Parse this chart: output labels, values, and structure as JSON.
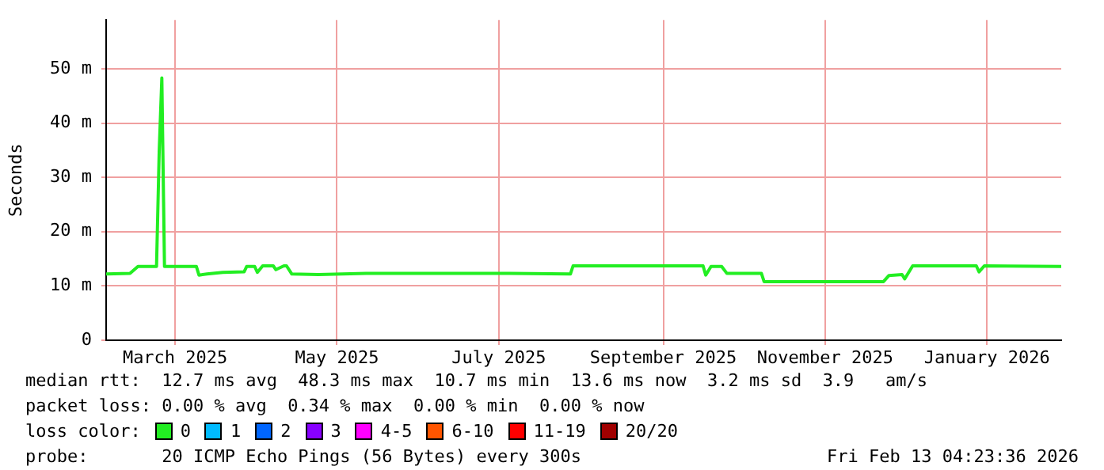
{
  "chart_data": {
    "type": "line",
    "ylabel": "Seconds",
    "x": [
      "2025-02-18",
      "2025-02-27",
      "2025-03-02",
      "2025-03-09",
      "2025-03-10",
      "2025-03-11",
      "2025-03-12",
      "2025-03-24",
      "2025-03-25",
      "2025-03-28",
      "2025-04-03",
      "2025-04-11",
      "2025-04-12",
      "2025-04-15",
      "2025-04-16",
      "2025-04-18",
      "2025-04-22",
      "2025-04-23",
      "2025-04-26",
      "2025-04-27",
      "2025-04-29",
      "2025-05-09",
      "2025-05-27",
      "2025-06-26",
      "2025-07-20",
      "2025-08-12",
      "2025-08-13",
      "2025-10-01",
      "2025-10-02",
      "2025-10-04",
      "2025-10-08",
      "2025-10-10",
      "2025-10-23",
      "2025-10-24",
      "2025-12-08",
      "2025-12-10",
      "2025-12-15",
      "2025-12-16",
      "2025-12-19",
      "2026-01-12",
      "2026-01-13",
      "2026-01-15",
      "2026-02-13"
    ],
    "series": [
      {
        "name": "0",
        "color": "#22ee22",
        "values": [
          12.2,
          12.3,
          13.6,
          13.6,
          34.7,
          48.3,
          13.6,
          13.6,
          12.0,
          12.2,
          12.5,
          12.6,
          13.6,
          13.6,
          12.5,
          13.7,
          13.7,
          13.0,
          13.7,
          13.7,
          12.2,
          12.1,
          12.3,
          12.3,
          12.3,
          12.2,
          13.7,
          13.7,
          12.0,
          13.6,
          13.6,
          12.3,
          12.3,
          10.8,
          10.8,
          11.9,
          12.1,
          11.3,
          13.7,
          13.7,
          12.6,
          13.7,
          13.6
        ]
      },
      {
        "name": "1",
        "color": "#00bbff",
        "values": [
          null,
          null,
          null,
          null,
          null,
          null,
          null,
          null,
          null,
          null,
          null,
          null,
          null,
          null,
          null,
          null,
          null,
          null,
          null,
          null,
          null,
          null,
          null,
          null,
          null,
          null,
          null,
          null,
          null,
          null,
          null,
          null,
          null,
          null,
          null,
          null,
          null,
          null,
          null,
          null,
          null,
          null,
          null
        ]
      },
      {
        "name": "2",
        "color": "#0066ff",
        "values": [
          null,
          null,
          null,
          null,
          null,
          null,
          null,
          null,
          null,
          null,
          null,
          null,
          null,
          null,
          null,
          null,
          null,
          null,
          null,
          null,
          null,
          null,
          null,
          null,
          null,
          null,
          null,
          null,
          null,
          null,
          null,
          null,
          null,
          null,
          null,
          null,
          null,
          null,
          null,
          null,
          null,
          null,
          null
        ]
      },
      {
        "name": "3",
        "color": "#8800ff",
        "values": [
          null,
          null,
          null,
          null,
          null,
          null,
          null,
          null,
          null,
          null,
          null,
          null,
          null,
          null,
          null,
          null,
          null,
          null,
          null,
          null,
          null,
          null,
          null,
          null,
          null,
          null,
          null,
          null,
          null,
          null,
          null,
          null,
          null,
          null,
          null,
          null,
          null,
          null,
          null,
          null,
          null,
          null,
          null
        ]
      },
      {
        "name": "4-5",
        "color": "#ff00ff",
        "values": [
          null,
          null,
          null,
          null,
          null,
          null,
          null,
          null,
          null,
          null,
          null,
          null,
          null,
          null,
          null,
          null,
          null,
          null,
          null,
          null,
          null,
          null,
          null,
          null,
          null,
          null,
          null,
          null,
          null,
          null,
          null,
          null,
          null,
          null,
          null,
          null,
          null,
          null,
          null,
          null,
          null,
          null,
          null
        ]
      },
      {
        "name": "6-10",
        "color": "#ff5500",
        "values": [
          null,
          null,
          null,
          null,
          null,
          null,
          null,
          null,
          null,
          null,
          null,
          null,
          null,
          null,
          null,
          null,
          null,
          null,
          null,
          null,
          null,
          null,
          null,
          null,
          null,
          null,
          null,
          null,
          null,
          null,
          null,
          null,
          null,
          null,
          null,
          null,
          null,
          null,
          null,
          null,
          null,
          null,
          null
        ]
      },
      {
        "name": "11-19",
        "color": "#ff0000",
        "values": [
          null,
          null,
          null,
          null,
          null,
          null,
          null,
          null,
          null,
          null,
          null,
          null,
          null,
          null,
          null,
          null,
          null,
          null,
          null,
          null,
          null,
          null,
          null,
          null,
          null,
          null,
          null,
          null,
          null,
          null,
          null,
          null,
          null,
          null,
          null,
          null,
          null,
          null,
          null,
          null,
          null,
          null,
          null
        ]
      },
      {
        "name": "20/20",
        "color": "#a10000",
        "values": [
          null,
          null,
          null,
          null,
          null,
          null,
          null,
          null,
          null,
          null,
          null,
          null,
          null,
          null,
          null,
          null,
          null,
          null,
          null,
          null,
          null,
          null,
          null,
          null,
          null,
          null,
          null,
          null,
          null,
          null,
          null,
          null,
          null,
          null,
          null,
          null,
          null,
          null,
          null,
          null,
          null,
          null,
          null
        ]
      }
    ],
    "xlim": [
      "2025-02-18",
      "2026-02-13"
    ],
    "xticks": [
      {
        "value": "2025-03-16",
        "label": "March 2025"
      },
      {
        "value": "2025-05-16",
        "label": "May 2025"
      },
      {
        "value": "2025-07-16",
        "label": "July 2025"
      },
      {
        "value": "2025-09-16",
        "label": "September 2025"
      },
      {
        "value": "2025-11-16",
        "label": "November 2025"
      },
      {
        "value": "2026-01-16",
        "label": "January 2026"
      }
    ],
    "ylim": [
      0,
      59
    ],
    "yticks": [
      0,
      {
        "value": 10,
        "label": "10 m"
      },
      {
        "value": 20,
        "label": "20 m"
      },
      {
        "value": 30,
        "label": "30 m"
      },
      {
        "value": 40,
        "label": "40 m"
      },
      {
        "value": 50,
        "label": "50 m"
      }
    ],
    "grid": true,
    "legend": "bottom",
    "legend_title": "loss color:",
    "marker": "none",
    "line_style": "solid",
    "annotations": [
      "median rtt:  12.7 ms avg  48.3 ms max  10.7 ms min  13.6 ms now  3.2 ms sd  3.9   am/s",
      "packet loss: 0.00 % avg  0.34 % max  0.00 % min  0.00 % now",
      "probe:       20 ICMP Echo Pings (56 Bytes) every 300s",
      "Fri Feb 13 04:23:36 2026"
    ]
  }
}
